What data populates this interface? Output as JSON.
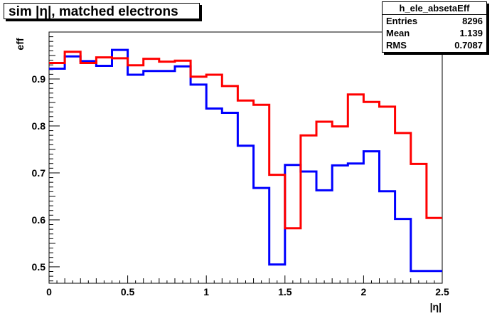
{
  "title": "sim |η|, matched electrons",
  "stats": {
    "name": "h_ele_absetaEff",
    "rows": [
      {
        "label": "Entries",
        "value": "8296"
      },
      {
        "label": "Mean",
        "value": "1.139"
      },
      {
        "label": "RMS",
        "value": "0.7087"
      }
    ]
  },
  "chart_data": {
    "type": "line",
    "title": "sim |η|, matched electrons",
    "xlabel": "|η|",
    "ylabel": "eff",
    "xlim": [
      0,
      2.5
    ],
    "ylim": [
      0.465,
      1.0
    ],
    "grid": false,
    "x_ticks": [
      "0",
      "0.5",
      "1",
      "1.5",
      "2",
      "2.5"
    ],
    "y_ticks": [
      "0.5",
      "0.6",
      "0.7",
      "0.8",
      "0.9"
    ],
    "bin_edges": [
      0,
      0.1,
      0.2,
      0.3,
      0.4,
      0.5,
      0.6,
      0.7,
      0.8,
      0.9,
      1.0,
      1.1,
      1.2,
      1.3,
      1.4,
      1.5,
      1.6,
      1.7,
      1.8,
      1.9,
      2.0,
      2.1,
      2.2,
      2.3,
      2.4,
      2.5
    ],
    "series": [
      {
        "color": "#0000ff",
        "values": [
          0.922,
          0.948,
          0.938,
          0.928,
          0.962,
          0.909,
          0.917,
          0.917,
          0.927,
          0.888,
          0.837,
          0.828,
          0.758,
          0.668,
          0.505,
          0.717,
          0.703,
          0.663,
          0.716,
          0.72,
          0.746,
          0.661,
          0.602,
          0.491,
          0.491
        ]
      },
      {
        "color": "#ff0000",
        "values": [
          0.934,
          0.958,
          0.934,
          0.946,
          0.944,
          0.929,
          0.943,
          0.937,
          0.939,
          0.905,
          0.909,
          0.885,
          0.854,
          0.845,
          0.696,
          0.582,
          0.78,
          0.809,
          0.799,
          0.867,
          0.851,
          0.841,
          0.785,
          0.719,
          0.604
        ]
      }
    ]
  }
}
